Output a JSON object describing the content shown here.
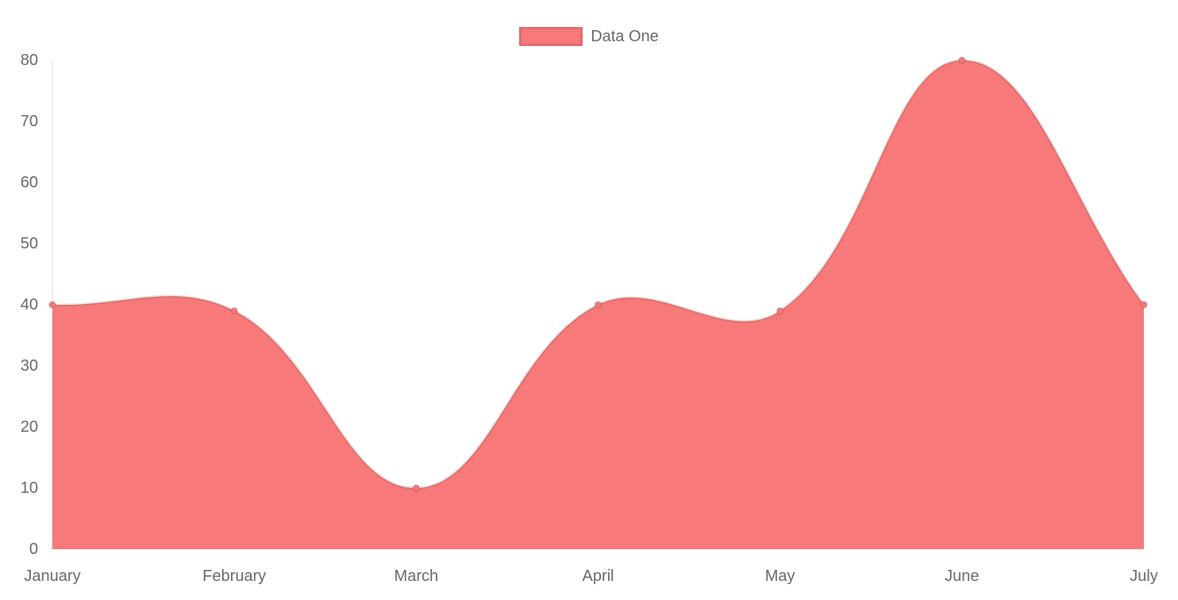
{
  "chart_data": {
    "type": "area",
    "title": "",
    "legend": {
      "label": "Data One",
      "position": "top"
    },
    "categories": [
      "January",
      "February",
      "March",
      "April",
      "May",
      "June",
      "July"
    ],
    "series": [
      {
        "name": "Data One",
        "values": [
          40,
          39,
          10,
          40,
          39,
          80,
          40
        ]
      }
    ],
    "xlabel": "",
    "ylabel": "",
    "ylim": [
      0,
      80
    ],
    "yticks": [
      0,
      10,
      20,
      30,
      40,
      50,
      60,
      70,
      80
    ],
    "grid": false,
    "line_tension": 0.4,
    "colors": {
      "fill": "#f87979",
      "line_border": "rgba(0,0,0,0.1)",
      "point_fill": "#f87979",
      "point_border": "rgba(0,0,0,0.1)",
      "axis_line": "rgba(0,0,0,0.1)",
      "text": "#666666",
      "background": "#ffffff"
    }
  }
}
